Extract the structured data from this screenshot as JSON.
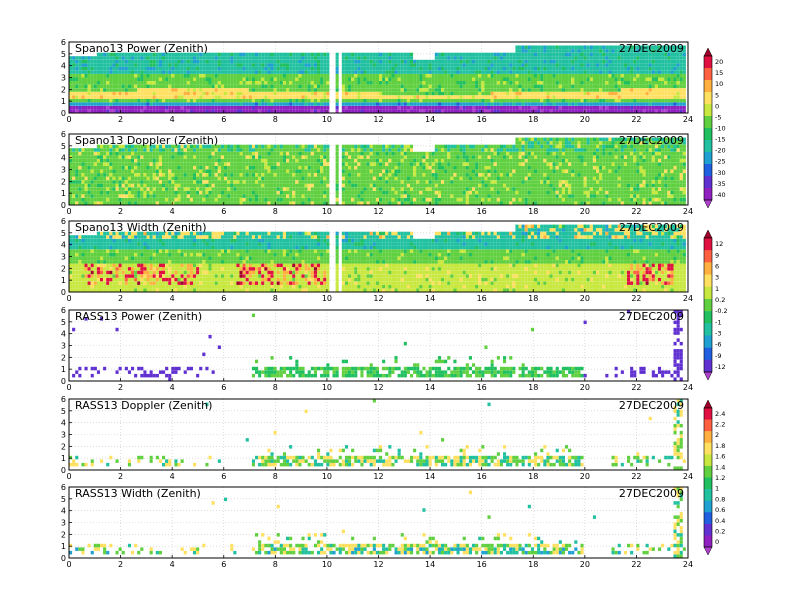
{
  "chart_data": [
    {
      "type": "heatmap",
      "title": "Spano13 Power (Zenith)",
      "date": "27DEC2009",
      "xlim": [
        0,
        24
      ],
      "ylim": [
        0,
        6
      ],
      "xticks": [
        "0",
        "2",
        "4",
        "6",
        "8",
        "10",
        "12",
        "14",
        "16",
        "18",
        "20",
        "22",
        "24"
      ],
      "yticks": [
        "0",
        "1",
        "2",
        "3",
        "4",
        "5",
        "6"
      ],
      "colorbar_group": "power"
    },
    {
      "type": "heatmap",
      "title": "Spano13 Doppler (Zenith)",
      "date": "27DEC2009",
      "xlim": [
        0,
        24
      ],
      "ylim": [
        0,
        6
      ],
      "xticks": [
        "0",
        "2",
        "4",
        "6",
        "8",
        "10",
        "12",
        "14",
        "16",
        "18",
        "20",
        "22",
        "24"
      ],
      "yticks": [
        "0",
        "1",
        "2",
        "3",
        "4",
        "5",
        "6"
      ],
      "colorbar_group": "power"
    },
    {
      "type": "heatmap",
      "title": "Spano13 Width (Zenith)",
      "date": "27DEC2009",
      "xlim": [
        0,
        24
      ],
      "ylim": [
        0,
        6
      ],
      "xticks": [
        "0",
        "2",
        "4",
        "6",
        "8",
        "10",
        "12",
        "14",
        "16",
        "18",
        "20",
        "22",
        "24"
      ],
      "yticks": [
        "0",
        "1",
        "2",
        "3",
        "4",
        "5",
        "6"
      ],
      "colorbar_group": "doppler"
    },
    {
      "type": "heatmap",
      "title": "RASS13 Power (Zenith)",
      "date": "27DEC2009",
      "xlim": [
        0,
        24
      ],
      "ylim": [
        0,
        6
      ],
      "xticks": [
        "0",
        "2",
        "4",
        "6",
        "8",
        "10",
        "12",
        "14",
        "16",
        "18",
        "20",
        "22",
        "24"
      ],
      "yticks": [
        "0",
        "1",
        "2",
        "3",
        "4",
        "5",
        "6"
      ],
      "colorbar_group": "doppler"
    },
    {
      "type": "heatmap",
      "title": "RASS13 Doppler (Zenith)",
      "date": "27DEC2009",
      "xlim": [
        0,
        24
      ],
      "ylim": [
        0,
        6
      ],
      "xticks": [
        "0",
        "2",
        "4",
        "6",
        "8",
        "10",
        "12",
        "14",
        "16",
        "18",
        "20",
        "22",
        "24"
      ],
      "yticks": [
        "0",
        "1",
        "2",
        "3",
        "4",
        "5",
        "6"
      ],
      "colorbar_group": "width"
    },
    {
      "type": "heatmap",
      "title": "RASS13 Width (Zenith)",
      "date": "27DEC2009",
      "xlim": [
        0,
        24
      ],
      "ylim": [
        0,
        6
      ],
      "xticks": [
        "0",
        "2",
        "4",
        "6",
        "8",
        "10",
        "12",
        "14",
        "16",
        "18",
        "20",
        "22",
        "24"
      ],
      "yticks": [
        "0",
        "1",
        "2",
        "3",
        "4",
        "5",
        "6"
      ],
      "colorbar_group": "width"
    }
  ],
  "colorbars": [
    {
      "name": "power",
      "labels": [
        "20",
        "15",
        "10",
        "5",
        "0",
        "-5",
        "-10",
        "-15",
        "-20",
        "-25",
        "-30",
        "-35",
        "-40"
      ],
      "colors": [
        "#a0002a",
        "#e01040",
        "#ff6040",
        "#ffb040",
        "#ffe060",
        "#c8e840",
        "#60d040",
        "#20c060",
        "#20c0a0",
        "#20a0d0",
        "#2060e0",
        "#6030d0",
        "#9020c0",
        "#b040d0"
      ]
    },
    {
      "name": "doppler",
      "labels": [
        "12",
        "9",
        "6",
        "3",
        "1",
        "0.2",
        "-0.2",
        "-1",
        "-3",
        "-6",
        "-9",
        "-12"
      ],
      "colors": [
        "#a0002a",
        "#e01040",
        "#ff6040",
        "#ffb040",
        "#ffe060",
        "#c8e840",
        "#60d040",
        "#20c060",
        "#20c0a0",
        "#20a0d0",
        "#2060e0",
        "#6030d0",
        "#b040d0"
      ]
    },
    {
      "name": "width",
      "labels": [
        "2.4",
        "2.2",
        "2",
        "1.8",
        "1.6",
        "1.4",
        "1.2",
        "1",
        "0.8",
        "0.6",
        "0.4",
        "0.2",
        "0"
      ],
      "colors": [
        "#a0002a",
        "#e01040",
        "#ff6040",
        "#ffb040",
        "#ffe060",
        "#c8e840",
        "#60d040",
        "#20c060",
        "#20c0a0",
        "#20a0d0",
        "#2060e0",
        "#6030d0",
        "#9020c0",
        "#b040d0"
      ]
    }
  ]
}
